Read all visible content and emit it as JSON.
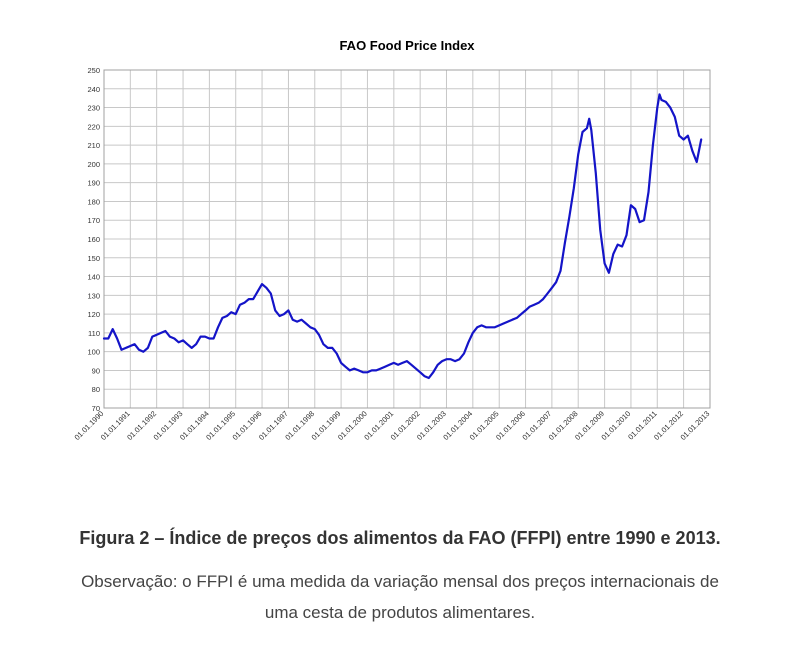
{
  "chart_data": {
    "type": "line",
    "title": "FAO Food Price Index",
    "xlabel": "",
    "ylabel": "",
    "ylim": [
      70,
      250
    ],
    "xlim": [
      "1990-01-01",
      "2013-01-01"
    ],
    "y_ticks": [
      "250",
      "240",
      "230",
      "220",
      "210",
      "200",
      "190",
      "180",
      "170",
      "160",
      "150",
      "140",
      "130",
      "120",
      "110",
      "100",
      "90",
      "80",
      "70"
    ],
    "x_ticks": [
      "01.01.1990",
      "01.01.1991",
      "01.01.1992",
      "01.01.1993",
      "01.01.1994",
      "01.01.1995",
      "01.01.1996",
      "01.01.1997",
      "01.01.1998",
      "01.01.1999",
      "01.01.2000",
      "01.01.2001",
      "01.01.2002",
      "01.01.2003",
      "01.01.2004",
      "01.01.2005",
      "01.01.2006",
      "01.01.2007",
      "01.01.2008",
      "01.01.2009",
      "01.01.2010",
      "01.01.2011",
      "01.01.2012",
      "01.01.2013"
    ],
    "grid": true,
    "line_color": "#1414c8",
    "series": [
      {
        "points": [
          [
            "1990-01-01",
            107
          ],
          [
            "1990-03-01",
            107
          ],
          [
            "1990-05-01",
            112
          ],
          [
            "1990-07-01",
            107
          ],
          [
            "1990-09-01",
            101
          ],
          [
            "1990-11-01",
            102
          ],
          [
            "1991-01-01",
            103
          ],
          [
            "1991-03-01",
            104
          ],
          [
            "1991-05-01",
            101
          ],
          [
            "1991-07-01",
            100
          ],
          [
            "1991-09-01",
            102
          ],
          [
            "1991-11-01",
            108
          ],
          [
            "1992-01-01",
            109
          ],
          [
            "1992-03-01",
            110
          ],
          [
            "1992-05-01",
            111
          ],
          [
            "1992-07-01",
            108
          ],
          [
            "1992-09-01",
            107
          ],
          [
            "1992-11-01",
            105
          ],
          [
            "1993-01-01",
            106
          ],
          [
            "1993-03-01",
            104
          ],
          [
            "1993-05-01",
            102
          ],
          [
            "1993-07-01",
            104
          ],
          [
            "1993-09-01",
            108
          ],
          [
            "1993-11-01",
            108
          ],
          [
            "1994-01-01",
            107
          ],
          [
            "1994-03-01",
            107
          ],
          [
            "1994-05-01",
            113
          ],
          [
            "1994-07-01",
            118
          ],
          [
            "1994-09-01",
            119
          ],
          [
            "1994-11-01",
            121
          ],
          [
            "1995-01-01",
            120
          ],
          [
            "1995-03-01",
            125
          ],
          [
            "1995-05-01",
            126
          ],
          [
            "1995-07-01",
            128
          ],
          [
            "1995-09-01",
            128
          ],
          [
            "1995-11-01",
            132
          ],
          [
            "1996-01-01",
            136
          ],
          [
            "1996-03-01",
            134
          ],
          [
            "1996-05-01",
            131
          ],
          [
            "1996-07-01",
            122
          ],
          [
            "1996-09-01",
            119
          ],
          [
            "1996-11-01",
            120
          ],
          [
            "1997-01-01",
            122
          ],
          [
            "1997-03-01",
            117
          ],
          [
            "1997-05-01",
            116
          ],
          [
            "1997-07-01",
            117
          ],
          [
            "1997-09-01",
            115
          ],
          [
            "1997-11-01",
            113
          ],
          [
            "1998-01-01",
            112
          ],
          [
            "1998-03-01",
            109
          ],
          [
            "1998-05-01",
            104
          ],
          [
            "1998-07-01",
            102
          ],
          [
            "1998-09-01",
            102
          ],
          [
            "1998-11-01",
            99
          ],
          [
            "1999-01-01",
            94
          ],
          [
            "1999-03-01",
            92
          ],
          [
            "1999-05-01",
            90
          ],
          [
            "1999-07-01",
            91
          ],
          [
            "1999-09-01",
            90
          ],
          [
            "1999-11-01",
            89
          ],
          [
            "2000-01-01",
            89
          ],
          [
            "2000-03-01",
            90
          ],
          [
            "2000-05-01",
            90
          ],
          [
            "2000-07-01",
            91
          ],
          [
            "2000-09-01",
            92
          ],
          [
            "2000-11-01",
            93
          ],
          [
            "2001-01-01",
            94
          ],
          [
            "2001-03-01",
            93
          ],
          [
            "2001-05-01",
            94
          ],
          [
            "2001-07-01",
            95
          ],
          [
            "2001-09-01",
            93
          ],
          [
            "2001-11-01",
            91
          ],
          [
            "2002-01-01",
            89
          ],
          [
            "2002-03-01",
            87
          ],
          [
            "2002-05-01",
            86
          ],
          [
            "2002-07-01",
            89
          ],
          [
            "2002-09-01",
            93
          ],
          [
            "2002-11-01",
            95
          ],
          [
            "2003-01-01",
            96
          ],
          [
            "2003-03-01",
            96
          ],
          [
            "2003-05-01",
            95
          ],
          [
            "2003-07-01",
            96
          ],
          [
            "2003-09-01",
            99
          ],
          [
            "2003-11-01",
            105
          ],
          [
            "2004-01-01",
            110
          ],
          [
            "2004-03-01",
            113
          ],
          [
            "2004-05-01",
            114
          ],
          [
            "2004-07-01",
            113
          ],
          [
            "2004-09-01",
            113
          ],
          [
            "2004-11-01",
            113
          ],
          [
            "2005-01-01",
            114
          ],
          [
            "2005-03-01",
            115
          ],
          [
            "2005-05-01",
            116
          ],
          [
            "2005-07-01",
            117
          ],
          [
            "2005-09-01",
            118
          ],
          [
            "2005-11-01",
            120
          ],
          [
            "2006-01-01",
            122
          ],
          [
            "2006-03-01",
            124
          ],
          [
            "2006-05-01",
            125
          ],
          [
            "2006-07-01",
            126
          ],
          [
            "2006-09-01",
            128
          ],
          [
            "2006-11-01",
            131
          ],
          [
            "2007-01-01",
            134
          ],
          [
            "2007-03-01",
            137
          ],
          [
            "2007-05-01",
            143
          ],
          [
            "2007-07-01",
            158
          ],
          [
            "2007-09-01",
            172
          ],
          [
            "2007-11-01",
            187
          ],
          [
            "2008-01-01",
            205
          ],
          [
            "2008-03-01",
            217
          ],
          [
            "2008-05-01",
            219
          ],
          [
            "2008-06-01",
            224
          ],
          [
            "2008-07-01",
            218
          ],
          [
            "2008-09-01",
            195
          ],
          [
            "2008-11-01",
            165
          ],
          [
            "2009-01-01",
            147
          ],
          [
            "2009-03-01",
            142
          ],
          [
            "2009-05-01",
            152
          ],
          [
            "2009-07-01",
            157
          ],
          [
            "2009-09-01",
            156
          ],
          [
            "2009-11-01",
            162
          ],
          [
            "2010-01-01",
            178
          ],
          [
            "2010-03-01",
            176
          ],
          [
            "2010-05-01",
            169
          ],
          [
            "2010-07-01",
            170
          ],
          [
            "2010-09-01",
            185
          ],
          [
            "2010-11-01",
            210
          ],
          [
            "2011-01-01",
            230
          ],
          [
            "2011-02-01",
            237
          ],
          [
            "2011-03-01",
            234
          ],
          [
            "2011-05-01",
            233
          ],
          [
            "2011-07-01",
            230
          ],
          [
            "2011-09-01",
            225
          ],
          [
            "2011-11-01",
            215
          ],
          [
            "2012-01-01",
            213
          ],
          [
            "2012-03-01",
            215
          ],
          [
            "2012-05-01",
            207
          ],
          [
            "2012-07-01",
            201
          ],
          [
            "2012-09-01",
            213
          ]
        ]
      }
    ]
  },
  "caption": {
    "title": "Figura 2 – Índice de preços dos alimentos da FAO (FFPI) entre 1990 e 2013.",
    "note_line1": "Observação: o FFPI é uma medida da variação mensal dos preços internacionais de",
    "note_line2": "uma cesta de produtos alimentares."
  }
}
